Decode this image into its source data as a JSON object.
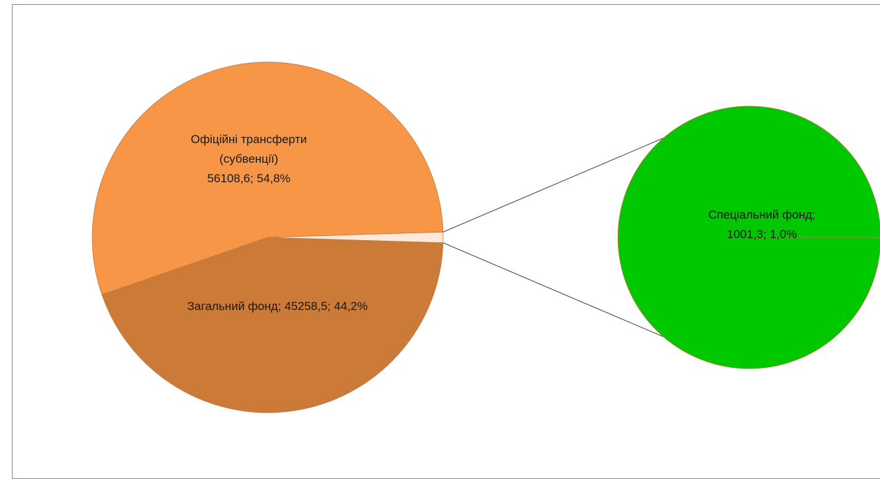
{
  "top_text_fragment": "",
  "chart_data": {
    "type": "pie",
    "subtype": "pie-of-pie",
    "title": "",
    "slices": [
      {
        "name": "Офіційні трансферти (субвенції)",
        "value": 56108.6,
        "percent": 54.8,
        "color": "#f79646",
        "label_lines": [
          "Офіційні трансферти",
          "(субвенції)",
          "56108,6; 54,8%"
        ]
      },
      {
        "name": "Загальний фонд",
        "value": 45258.5,
        "percent": 44.2,
        "color": "#cc7a38",
        "label_lines": [
          "Загальний фонд; 45258,5; 44,2%"
        ]
      },
      {
        "name": "Спеціальний фонд",
        "value": 1001.3,
        "percent": 1.0,
        "color": "#fde9d9",
        "label_lines": [
          "Спеціальний фонд;",
          "1001,3; 1,0%"
        ]
      }
    ],
    "secondary": {
      "slice": "Спеціальний фонд",
      "color": "#00c800",
      "label_lines": [
        "Спеціальний фонд;",
        "1001,3; 1,0%"
      ]
    },
    "legend": "none"
  }
}
